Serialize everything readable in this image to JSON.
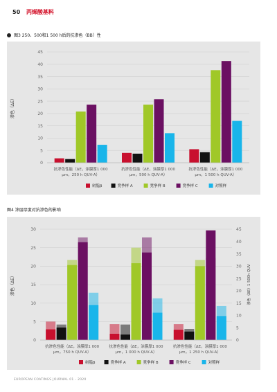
{
  "page_header": {
    "page_number": "50",
    "section": "丙烯酸基料"
  },
  "footer": "EUROPEAN COATINGS JOURNAL 01 - 2020",
  "colors": {
    "base": "#c8102e",
    "a": "#111111",
    "b": "#a0c828",
    "c": "#6b1062",
    "ref": "#19b5ea"
  },
  "fig3": {
    "title": "图3 250、500和1 500 h后的抗渗色（BB）性"
  },
  "fig4": {
    "title": "图4 涂层厚度对抗渗色的影响"
  },
  "chart_data": [
    {
      "type": "bar",
      "ylabel": "渗色（ΔE）",
      "ylim": [
        0,
        45
      ],
      "yticks": [
        0,
        5,
        10,
        15,
        20,
        25,
        30,
        35,
        40,
        45
      ],
      "categories": [
        "抗渗色性能（ΔE，涂膜厚1 000 μm，250 h QUV-A）",
        "抗渗色性能（ΔE，涂膜厚1 000 μm，500 h QUV-A）",
        "抗渗色性能（ΔE，涂膜厚1 000 μm，1 500 h QUV-A）"
      ],
      "series": [
        {
          "name": "树脂β",
          "color": "#c8102e",
          "values": [
            1.8,
            4.0,
            5.5
          ]
        },
        {
          "name": "竞争样 A",
          "color": "#111111",
          "values": [
            1.5,
            3.7,
            4.3
          ]
        },
        {
          "name": "竞争样 B",
          "color": "#a0c828",
          "values": [
            20.8,
            23.6,
            37.6
          ]
        },
        {
          "name": "竞争样 C",
          "color": "#6b1062",
          "values": [
            23.6,
            25.8,
            41.3
          ]
        },
        {
          "name": "对照样",
          "color": "#19b5ea",
          "values": [
            7.3,
            12.0,
            17.0
          ]
        }
      ]
    },
    {
      "type": "bar",
      "ylabel": "渗色（ΔE）",
      "ylabel_right": "渗色（ΔE）1 500h QUV",
      "ylim": [
        0,
        30
      ],
      "ylim_right": [
        0,
        45
      ],
      "yticks": [
        0,
        5,
        10,
        15,
        20,
        25,
        30
      ],
      "yticks_right": [
        0,
        5,
        10,
        15,
        20,
        25,
        30,
        35,
        40,
        45
      ],
      "categories": [
        "抗渗色性能（ΔE，涂膜厚1 000 μm，750 h QUV-A）",
        "抗渗色性能（ΔE，涂膜厚1 000 μm，1 000 h QUV-A）",
        "抗渗色性能（ΔE，涂膜厚1 000 μm，1 250 h QUV-A）"
      ],
      "series": [
        {
          "name": "树脂β",
          "color": "#c8102e",
          "values": [
            2.9,
            1.7,
            2.8
          ],
          "values_1500h": [
            5.0,
            4.3,
            4.3
          ]
        },
        {
          "name": "竞争样 A",
          "color": "#111111",
          "values": [
            3.4,
            1.5,
            2.3
          ],
          "values_1500h": [
            4.2,
            4.2,
            3.0
          ]
        },
        {
          "name": "竞争样 B",
          "color": "#a0c828",
          "values": [
            20.3,
            20.8,
            20.0
          ],
          "values_1500h": [
            21.7,
            25.0,
            21.7
          ]
        },
        {
          "name": "竞争样 C",
          "color": "#6b1062",
          "values": [
            26.5,
            23.7,
            29.7
          ],
          "values_1500h": [
            27.8,
            27.8,
            22.2
          ]
        },
        {
          "name": "对照样",
          "color": "#19b5ea",
          "values": [
            9.5,
            7.4,
            6.5
          ],
          "values_1500h": [
            12.8,
            11.3,
            9.2
          ]
        }
      ]
    }
  ]
}
